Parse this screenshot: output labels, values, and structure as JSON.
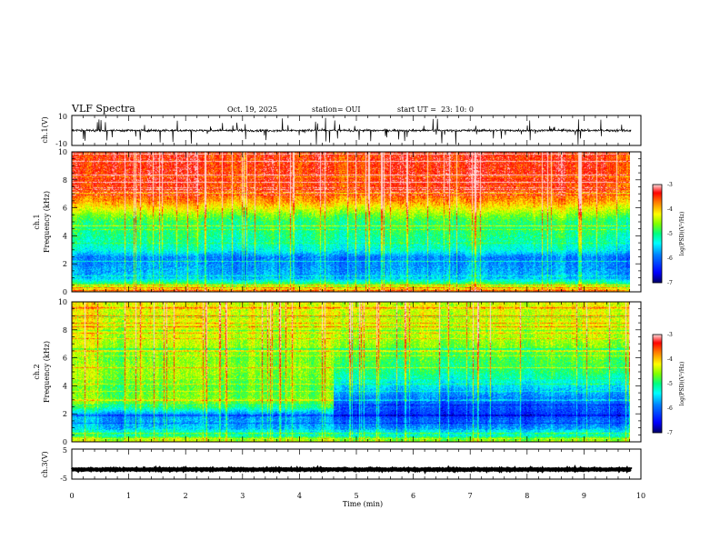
{
  "header": {
    "title": "VLF Spectra",
    "date": "Oct. 19, 2025",
    "station": "station= OUI",
    "start": "start UT =  23: 10: 0"
  },
  "colors": {
    "scale": [
      "#000080",
      "#0000ff",
      "#0080ff",
      "#00ffff",
      "#00ff80",
      "#80ff00",
      "#ffff00",
      "#ff8000",
      "#ff0000",
      "#ffc0c0"
    ],
    "trace": "#000000"
  },
  "chart_data": [
    {
      "id": "ch1-waveform",
      "type": "line",
      "ylabel": "ch.1(V)",
      "ylim": [
        -10,
        10
      ],
      "yticks": [
        "10",
        "-10"
      ],
      "xlim": [
        0,
        10
      ],
      "grid": false,
      "baseline": 0,
      "noise_amplitude": 1.5,
      "spike_times": [
        0.45,
        0.62,
        1.2,
        1.55,
        2.1,
        2.65,
        3.05,
        3.7,
        4.3,
        4.62,
        5.05,
        5.25,
        6.5,
        6.75,
        7.55,
        8.05,
        8.9,
        9.3
      ]
    },
    {
      "id": "ch1-spectrogram",
      "type": "heatmap",
      "ylabel": "ch.1\nFrequency (kHz)",
      "ylim": [
        0,
        10
      ],
      "yticks": [
        "0",
        "2",
        "4",
        "6",
        "8",
        "10"
      ],
      "xlim": [
        0,
        9.83
      ],
      "colorbar": {
        "label": "log(PSD)(V²/Hz)",
        "range": [
          -7,
          -3
        ],
        "ticks": [
          "-3",
          "-4",
          "-5",
          "-6",
          "-7"
        ]
      },
      "profile": [
        [
          0.0,
          -3.6
        ],
        [
          0.5,
          -4.6
        ],
        [
          1.0,
          -5.6
        ],
        [
          2.0,
          -5.8
        ],
        [
          2.5,
          -5.9
        ],
        [
          3.0,
          -5.3
        ],
        [
          4.0,
          -5.0
        ],
        [
          5.0,
          -4.9
        ],
        [
          5.5,
          -4.6
        ],
        [
          6.0,
          -4.2
        ],
        [
          6.5,
          -3.8
        ],
        [
          7.0,
          -3.6
        ],
        [
          8.0,
          -3.4
        ],
        [
          10.0,
          -3.4
        ]
      ]
    },
    {
      "id": "ch2-spectrogram",
      "type": "heatmap",
      "ylabel": "ch.2\nFrequency (kHz)",
      "ylim": [
        0,
        10
      ],
      "yticks": [
        "0",
        "2",
        "4",
        "6",
        "8",
        "10"
      ],
      "xlim": [
        0,
        9.83
      ],
      "colorbar": {
        "label": "log(PSD)(V²/Hz)",
        "range": [
          -7,
          -3
        ],
        "ticks": [
          "-3",
          "-4",
          "-5",
          "-6",
          "-7"
        ]
      },
      "change_time": 4.6,
      "profile_before": [
        [
          0.0,
          -4.2
        ],
        [
          1.0,
          -5.6
        ],
        [
          2.0,
          -5.8
        ],
        [
          2.6,
          -4.8
        ],
        [
          3.0,
          -4.6
        ],
        [
          4.0,
          -4.7
        ],
        [
          5.0,
          -4.5
        ],
        [
          6.0,
          -4.6
        ],
        [
          7.0,
          -4.4
        ],
        [
          8.0,
          -4.3
        ],
        [
          10.0,
          -4.2
        ]
      ],
      "profile_after": [
        [
          0.0,
          -4.4
        ],
        [
          1.0,
          -5.8
        ],
        [
          2.0,
          -6.3
        ],
        [
          3.0,
          -6.0
        ],
        [
          4.0,
          -5.5
        ],
        [
          5.0,
          -5.0
        ],
        [
          6.0,
          -4.8
        ],
        [
          7.0,
          -4.6
        ],
        [
          8.0,
          -4.4
        ],
        [
          10.0,
          -4.3
        ]
      ]
    },
    {
      "id": "ch3-waveform",
      "type": "line",
      "ylabel": "ch.3(V)",
      "ylim": [
        -5,
        5
      ],
      "yticks": [
        "5",
        "-5"
      ],
      "xlim": [
        0,
        10
      ],
      "grid": false,
      "baseline": -1.8,
      "noise_amplitude": 0.3
    }
  ],
  "xaxis": {
    "label": "Time (min)",
    "ticks": [
      "0",
      "1",
      "2",
      "3",
      "4",
      "5",
      "6",
      "7",
      "8",
      "9",
      "10"
    ],
    "range": [
      0,
      10
    ]
  }
}
